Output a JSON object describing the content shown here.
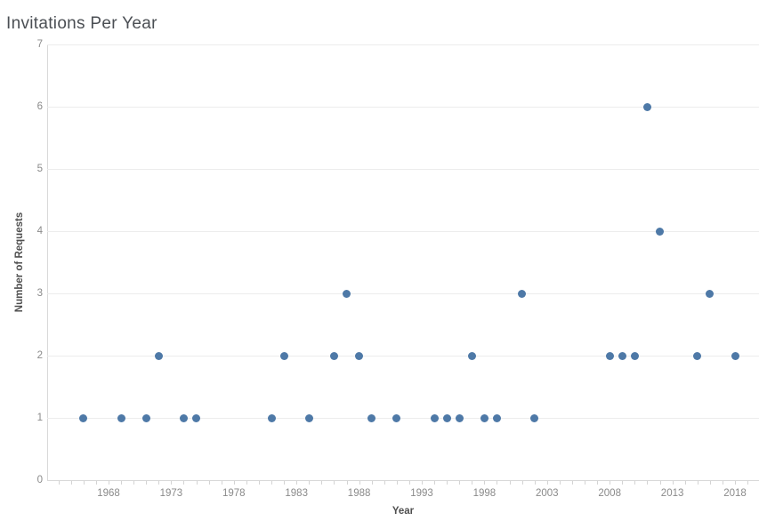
{
  "title": "Invitations Per Year",
  "colors": {
    "marker": "#4e79a7",
    "title_text": "#4b4f54",
    "tick_label": "#8a8a8a",
    "axis_title": "#4f4f4f",
    "gridline": "#ececec",
    "axis_line": "#d9d9d9"
  },
  "chart_data": {
    "type": "scatter",
    "title": "Invitations Per Year",
    "xlabel": "Year",
    "ylabel": "Number of Requests",
    "xlim": [
      1963,
      2020
    ],
    "ylim": [
      0,
      7
    ],
    "grid": "horizontal",
    "legend": "none",
    "x_ticks": [
      1968,
      1973,
      1978,
      1983,
      1988,
      1993,
      1998,
      2003,
      2008,
      2013,
      2018
    ],
    "x_minor_ticks_every_year_from": 1964,
    "x_minor_ticks_every_year_to": 2019,
    "y_ticks": [
      0,
      1,
      2,
      3,
      4,
      5,
      6,
      7
    ],
    "marker_color": "#4e79a7",
    "points": [
      {
        "x": 1966,
        "y": 1
      },
      {
        "x": 1969,
        "y": 1
      },
      {
        "x": 1971,
        "y": 1
      },
      {
        "x": 1972,
        "y": 2
      },
      {
        "x": 1974,
        "y": 1
      },
      {
        "x": 1975,
        "y": 1
      },
      {
        "x": 1981,
        "y": 1
      },
      {
        "x": 1982,
        "y": 2
      },
      {
        "x": 1984,
        "y": 1
      },
      {
        "x": 1986,
        "y": 2
      },
      {
        "x": 1987,
        "y": 3
      },
      {
        "x": 1988,
        "y": 2
      },
      {
        "x": 1989,
        "y": 1
      },
      {
        "x": 1991,
        "y": 1
      },
      {
        "x": 1994,
        "y": 1
      },
      {
        "x": 1995,
        "y": 1
      },
      {
        "x": 1996,
        "y": 1
      },
      {
        "x": 1997,
        "y": 2
      },
      {
        "x": 1998,
        "y": 1
      },
      {
        "x": 1999,
        "y": 1
      },
      {
        "x": 2001,
        "y": 3
      },
      {
        "x": 2002,
        "y": 1
      },
      {
        "x": 2008,
        "y": 2
      },
      {
        "x": 2009,
        "y": 2
      },
      {
        "x": 2010,
        "y": 2
      },
      {
        "x": 2011,
        "y": 6
      },
      {
        "x": 2012,
        "y": 4
      },
      {
        "x": 2015,
        "y": 2
      },
      {
        "x": 2016,
        "y": 3
      },
      {
        "x": 2018,
        "y": 2
      }
    ]
  }
}
